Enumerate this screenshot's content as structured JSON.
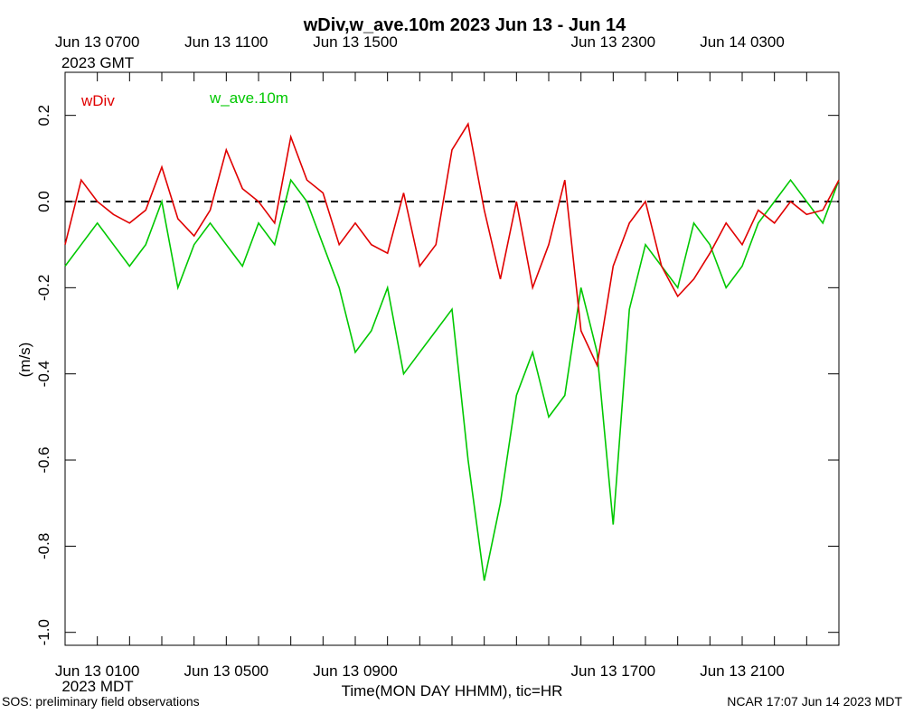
{
  "colors": {
    "wDiv": "#e00000",
    "w_ave_10m": "#00c800",
    "zero_line": "#000000"
  },
  "chart_data": {
    "type": "line",
    "title": "wDiv,w_ave.10m 2023 Jun 13 - Jun 14",
    "xlabel": "Time(MON DAY HHMM), tic=HR",
    "ylabel": "(m/s)",
    "ylim": [
      -1.03,
      0.3
    ],
    "xlim_hours": [
      0,
      24
    ],
    "yticks": [
      "0.2",
      "0.0",
      "-0.2",
      "-0.4",
      "-0.6",
      "-0.8",
      "-1.0"
    ],
    "ytick_values": [
      0.2,
      0.0,
      -0.2,
      -0.4,
      -0.6,
      -0.8,
      -1.0
    ],
    "bottom_axis": {
      "labels": [
        "Jun 13 0100",
        "Jun 13 0500",
        "Jun 13 0900",
        "Jun 13 1700",
        "Jun 13 2100"
      ],
      "label_hours": [
        1,
        5,
        9,
        17,
        21
      ],
      "tz_label": "2023 MDT"
    },
    "top_axis": {
      "labels": [
        "Jun 13 0700",
        "Jun 13 1100",
        "Jun 13 1500",
        "Jun 13 2300",
        "Jun 14 0300"
      ],
      "label_hours": [
        1,
        5,
        9,
        17,
        21
      ],
      "tz_label": "2023 GMT"
    },
    "reference_line": {
      "y": 0.0,
      "style": "dashed"
    },
    "legend": [
      "wDiv",
      "w_ave.10m"
    ],
    "series": [
      {
        "name": "wDiv",
        "x": [
          0.0,
          0.5,
          1.0,
          1.5,
          2.0,
          2.5,
          3.0,
          3.5,
          4.0,
          4.5,
          5.0,
          5.5,
          6.0,
          6.5,
          7.0,
          7.5,
          8.0,
          8.5,
          9.0,
          9.5,
          10.0,
          10.5,
          11.0,
          11.5,
          12.0,
          12.5,
          13.0,
          13.5,
          14.0,
          14.5,
          15.0,
          15.5,
          16.0,
          16.5,
          17.0,
          17.5,
          18.0,
          18.5,
          19.0,
          19.5,
          20.0,
          20.5,
          21.0,
          21.5,
          22.0,
          22.5,
          23.0,
          23.5,
          24.0
        ],
        "values": [
          -0.1,
          0.05,
          0.0,
          -0.03,
          -0.05,
          -0.02,
          0.08,
          -0.04,
          -0.08,
          -0.02,
          0.12,
          0.03,
          0.0,
          -0.05,
          0.15,
          0.05,
          0.02,
          -0.1,
          -0.05,
          -0.1,
          -0.12,
          0.02,
          -0.15,
          -0.1,
          0.12,
          0.18,
          -0.02,
          -0.18,
          0.0,
          -0.2,
          -0.1,
          0.05,
          -0.3,
          -0.38,
          -0.15,
          -0.05,
          0.0,
          -0.15,
          -0.22,
          -0.18,
          -0.12,
          -0.05,
          -0.1,
          -0.02,
          -0.05,
          0.0,
          -0.03,
          -0.02,
          0.05
        ]
      },
      {
        "name": "w_ave.10m",
        "x": [
          0.0,
          0.5,
          1.0,
          1.5,
          2.0,
          2.5,
          3.0,
          3.5,
          4.0,
          4.5,
          5.0,
          5.5,
          6.0,
          6.5,
          7.0,
          7.5,
          8.0,
          8.5,
          9.0,
          9.5,
          10.0,
          10.5,
          11.0,
          11.5,
          12.0,
          12.5,
          13.0,
          13.5,
          14.0,
          14.5,
          15.0,
          15.5,
          16.0,
          16.5,
          17.0,
          17.5,
          18.0,
          18.5,
          19.0,
          19.5,
          20.0,
          20.5,
          21.0,
          21.5,
          22.0,
          22.5,
          23.0,
          23.5,
          24.0
        ],
        "values": [
          -0.15,
          -0.1,
          -0.05,
          -0.1,
          -0.15,
          -0.1,
          0.0,
          -0.2,
          -0.1,
          -0.05,
          -0.1,
          -0.15,
          -0.05,
          -0.1,
          0.05,
          0.0,
          -0.1,
          -0.2,
          -0.35,
          -0.3,
          -0.2,
          -0.4,
          -0.35,
          -0.3,
          -0.25,
          -0.6,
          -0.88,
          -0.7,
          -0.45,
          -0.35,
          -0.5,
          -0.45,
          -0.2,
          -0.35,
          -0.75,
          -0.25,
          -0.1,
          -0.15,
          -0.2,
          -0.05,
          -0.1,
          -0.2,
          -0.15,
          -0.05,
          0.0,
          0.05,
          0.0,
          -0.05,
          0.05
        ]
      }
    ]
  },
  "footer": {
    "left": "SOS: preliminary field observations",
    "right": "NCAR 17:07 Jun 14 2023 MDT"
  }
}
